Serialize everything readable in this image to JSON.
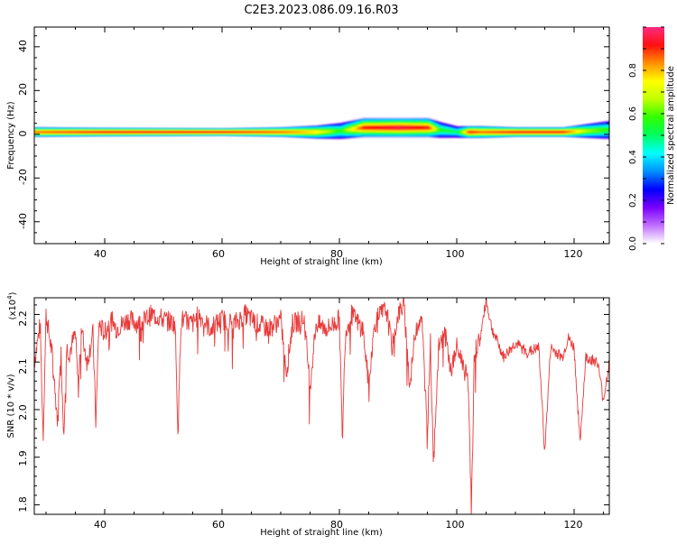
{
  "figure": {
    "title": "C2E3.2023.086.09.16.R03"
  },
  "colors": {
    "snr_line": "#e83a3a",
    "axis": "#000000",
    "background": "#ffffff"
  },
  "chart_data": [
    {
      "type": "heatmap",
      "title": "",
      "xlabel": "Height of straight line (km)",
      "ylabel": "Frequency (Hz)",
      "xlim": [
        28,
        126
      ],
      "ylim": [
        -50,
        49
      ],
      "x_ticks": [
        "40",
        "60",
        "80",
        "100",
        "120"
      ],
      "y_ticks": [
        "40",
        "20",
        "0",
        "-20",
        "-40"
      ],
      "colorbar": {
        "label": "Normalized spectral amplitude",
        "range": [
          0,
          1
        ],
        "ticks": [
          "0.0",
          "0.2",
          "0.4",
          "0.6",
          "0.8"
        ],
        "colors": [
          "#ffffff",
          "#c070ff",
          "#7a00ff",
          "#0000ff",
          "#0090ff",
          "#00ffff",
          "#00ff60",
          "#30ff00",
          "#c0ff00",
          "#ffff00",
          "#ff9000",
          "#ff1010",
          "#ff2a80"
        ]
      },
      "band": {
        "description_x": [
          28,
          40,
          60,
          70,
          76,
          80,
          84,
          90,
          95,
          97,
          100,
          102,
          104,
          110,
          118,
          122,
          126
        ],
        "center_hz": [
          1,
          1,
          1,
          1,
          1,
          1.5,
          3,
          3,
          3,
          2,
          1,
          1,
          1,
          1,
          1,
          1.5,
          2
        ],
        "halfwidth_hz": [
          2,
          1.8,
          1.6,
          2,
          2.8,
          3.5,
          4,
          4,
          4,
          3.5,
          2.5,
          2.5,
          2.5,
          2,
          2,
          3,
          4
        ],
        "amplitude": [
          0.85,
          0.9,
          0.9,
          0.85,
          0.75,
          0.55,
          0.9,
          0.95,
          0.9,
          0.55,
          0.5,
          0.9,
          0.85,
          0.9,
          0.9,
          0.65,
          0.55
        ]
      }
    },
    {
      "type": "line",
      "title": "",
      "xlabel": "Height of straight line (km)",
      "ylabel": "SNR (10 * v/v)",
      "y_multiplier": "(x10",
      "y_multiplier_exp": "4",
      "y_multiplier_close": ")",
      "xlim": [
        28,
        126
      ],
      "ylim": [
        1.78,
        2.235
      ],
      "x_ticks": [
        "40",
        "60",
        "80",
        "100",
        "120"
      ],
      "y_ticks": [
        "2.2",
        "2.1",
        "2.0",
        "1.9",
        "1.8"
      ],
      "series": [
        {
          "x": [
            28,
            29,
            29.5,
            30,
            31,
            32,
            32.5,
            33,
            33.5,
            34,
            35,
            35.5,
            36,
            37,
            38,
            38.5,
            39,
            40,
            41,
            42,
            44,
            46,
            48,
            50,
            52,
            52.5,
            53,
            55,
            56,
            58,
            60,
            62,
            64,
            66,
            68,
            70,
            71,
            72,
            74,
            75,
            76,
            78,
            80,
            80.5,
            81,
            82,
            84,
            85,
            86,
            87,
            88,
            89,
            90,
            91,
            92,
            93,
            94,
            95,
            95.5,
            96,
            97,
            98,
            99,
            100,
            101,
            102,
            102.5,
            103,
            104,
            105,
            106,
            108,
            110,
            112,
            114,
            115,
            116,
            118,
            119,
            120,
            121,
            122,
            124,
            125,
            126
          ],
          "y": [
            2.1,
            2.18,
            1.94,
            2.2,
            2.12,
            1.97,
            2.14,
            1.95,
            2.13,
            2.12,
            2.16,
            2.04,
            2.17,
            2.1,
            2.16,
            1.97,
            2.18,
            2.16,
            2.19,
            2.17,
            2.19,
            2.18,
            2.2,
            2.19,
            2.18,
            1.95,
            2.19,
            2.18,
            2.2,
            2.17,
            2.19,
            2.18,
            2.2,
            2.18,
            2.17,
            2.19,
            2.08,
            2.18,
            2.19,
            2.05,
            2.18,
            2.17,
            2.19,
            1.93,
            2.16,
            2.2,
            2.17,
            2.05,
            2.18,
            2.2,
            2.21,
            2.13,
            2.2,
            2.22,
            2.05,
            2.17,
            2.2,
            1.95,
            2.15,
            1.9,
            2.14,
            2.16,
            2.08,
            2.13,
            2.1,
            2.05,
            1.78,
            2.12,
            2.15,
            2.23,
            2.17,
            2.11,
            2.14,
            2.12,
            2.13,
            1.91,
            2.13,
            2.11,
            2.15,
            2.13,
            1.93,
            2.11,
            2.1,
            2.02,
            2.1
          ]
        }
      ]
    }
  ]
}
